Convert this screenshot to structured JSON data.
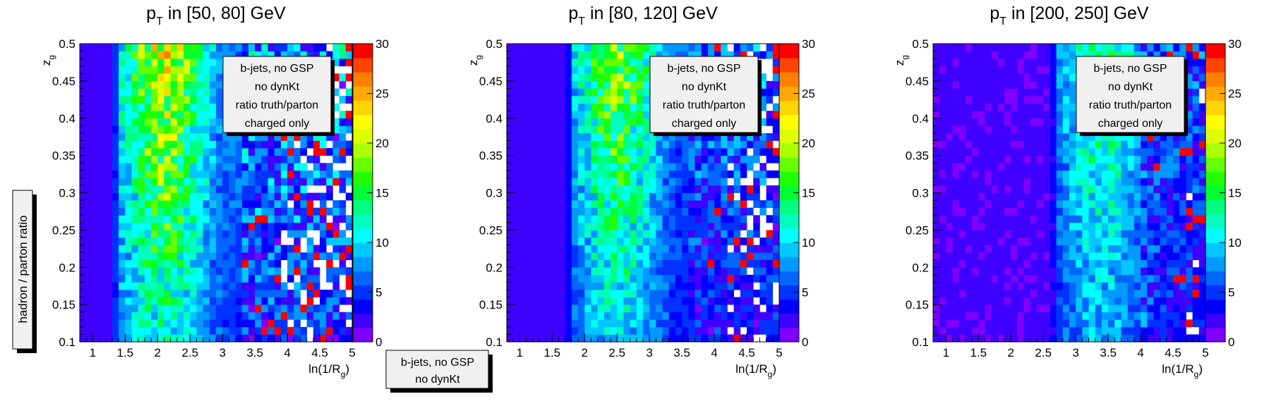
{
  "side_label": "hadron / parton ratio",
  "footer_box": {
    "lines": [
      "b-jets, no GSP",
      "no dynKt"
    ]
  },
  "colors": {
    "palette": [
      "#7f00ff",
      "#3f00ff",
      "#0000ff",
      "#0033ff",
      "#0066ff",
      "#0099ff",
      "#00c8ff",
      "#00ffff",
      "#00ffbf",
      "#00ff7f",
      "#00ff33",
      "#22ff00",
      "#66ff00",
      "#aaff00",
      "#ddff00",
      "#ffff00",
      "#ffd400",
      "#ffaa00",
      "#ff7f00",
      "#ff4400",
      "#ff0000"
    ]
  },
  "chart_data": [
    {
      "type": "heatmap",
      "title": "p_T in [50, 80] GeV",
      "title_parts": {
        "main": "p",
        "sub": "T",
        "rest": " in [50, 80] GeV"
      },
      "xlabel": "ln(1/R_g)",
      "xlabel_parts": {
        "main": "ln(1/R",
        "sub": "g",
        "rest": ")"
      },
      "ylabel": "z_g",
      "ylabel_parts": {
        "main": "z",
        "sub": "g"
      },
      "xlim": [
        0.8,
        5.0
      ],
      "ylim": [
        0.1,
        0.5
      ],
      "zlim": [
        0,
        30
      ],
      "x_ticks": [
        "1",
        "1.5",
        "2",
        "2.5",
        "3",
        "3.5",
        "4",
        "4.5",
        "5"
      ],
      "y_ticks": [
        "0.1",
        "0.15",
        "0.2",
        "0.25",
        "0.3",
        "0.35",
        "0.4",
        "0.45",
        "0.5"
      ],
      "z_ticks": [
        "0",
        "5",
        "10",
        "15",
        "20",
        "25",
        "30"
      ],
      "nx": 42,
      "ny": 40,
      "annotation": [
        "b-jets, no GSP",
        "no dynKt",
        "ratio truth/parton",
        "charged only"
      ],
      "field": {
        "x_edge": 1.45,
        "edge_value": 4,
        "left_value": 1.2,
        "peak_x": 2.1,
        "peak_y_slope": 34,
        "peak_value": 14,
        "fall_x": 3.2,
        "fall_rate": 4,
        "noise_start": 3.3,
        "noise_amp": 1.3,
        "hole_start": 3.9,
        "hole_rate": 0.22,
        "seed": 11
      }
    },
    {
      "type": "heatmap",
      "title": "p_T in [80, 120] GeV",
      "title_parts": {
        "main": "p",
        "sub": "T",
        "rest": " in [80, 120] GeV"
      },
      "xlabel": "ln(1/R_g)",
      "xlabel_parts": {
        "main": "ln(1/R",
        "sub": "g",
        "rest": ")"
      },
      "ylabel": "z_g",
      "ylabel_parts": {
        "main": "z",
        "sub": "g"
      },
      "xlim": [
        0.8,
        5.0
      ],
      "ylim": [
        0.1,
        0.5
      ],
      "zlim": [
        0,
        30
      ],
      "x_ticks": [
        "1",
        "1.5",
        "2",
        "2.5",
        "3",
        "3.5",
        "4",
        "4.5",
        "5"
      ],
      "y_ticks": [
        "0.1",
        "0.15",
        "0.2",
        "0.25",
        "0.3",
        "0.35",
        "0.4",
        "0.45",
        "0.5"
      ],
      "z_ticks": [
        "0",
        "5",
        "10",
        "15",
        "20",
        "25",
        "30"
      ],
      "nx": 42,
      "ny": 40,
      "annotation": [
        "b-jets, no GSP",
        "no dynKt",
        "ratio truth/parton",
        "charged only"
      ],
      "field": {
        "x_edge": 1.85,
        "edge_value": 3,
        "left_value": 0.8,
        "peak_x": 2.5,
        "peak_y_slope": 32,
        "peak_value": 13,
        "fall_x": 3.6,
        "fall_rate": 3.5,
        "noise_start": 3.6,
        "noise_amp": 1.2,
        "hole_start": 4.2,
        "hole_rate": 0.2,
        "seed": 23
      }
    },
    {
      "type": "heatmap",
      "title": "p_T in [200, 250] GeV",
      "title_parts": {
        "main": "p",
        "sub": "T",
        "rest": " in [200, 250] GeV"
      },
      "xlabel": "ln(1/R_g)",
      "xlabel_parts": {
        "main": "ln(1/R",
        "sub": "g",
        "rest": ")"
      },
      "ylabel": "z_g",
      "ylabel_parts": {
        "main": "z",
        "sub": "g"
      },
      "xlim": [
        0.8,
        5.0
      ],
      "ylim": [
        0.1,
        0.5
      ],
      "zlim": [
        0,
        30
      ],
      "x_ticks": [
        "1",
        "1.5",
        "2",
        "2.5",
        "3",
        "3.5",
        "4",
        "4.5",
        "5"
      ],
      "y_ticks": [
        "0.1",
        "0.15",
        "0.2",
        "0.25",
        "0.3",
        "0.35",
        "0.4",
        "0.45",
        "0.5"
      ],
      "z_ticks": [
        "0",
        "5",
        "10",
        "15",
        "20",
        "25",
        "30"
      ],
      "nx": 42,
      "ny": 40,
      "annotation": [
        "b-jets, no GSP",
        "no dynKt",
        "ratio truth/parton",
        "charged only"
      ],
      "field": {
        "x_edge": 2.7,
        "edge_value": 2.5,
        "left_value": 0.6,
        "peak_x": 3.4,
        "peak_y_slope": 26,
        "peak_value": 11,
        "fall_x": 4.3,
        "fall_rate": 3,
        "noise_start": 4.0,
        "noise_amp": 1.1,
        "hole_start": 4.7,
        "hole_rate": 0.12,
        "seed": 37
      }
    }
  ]
}
